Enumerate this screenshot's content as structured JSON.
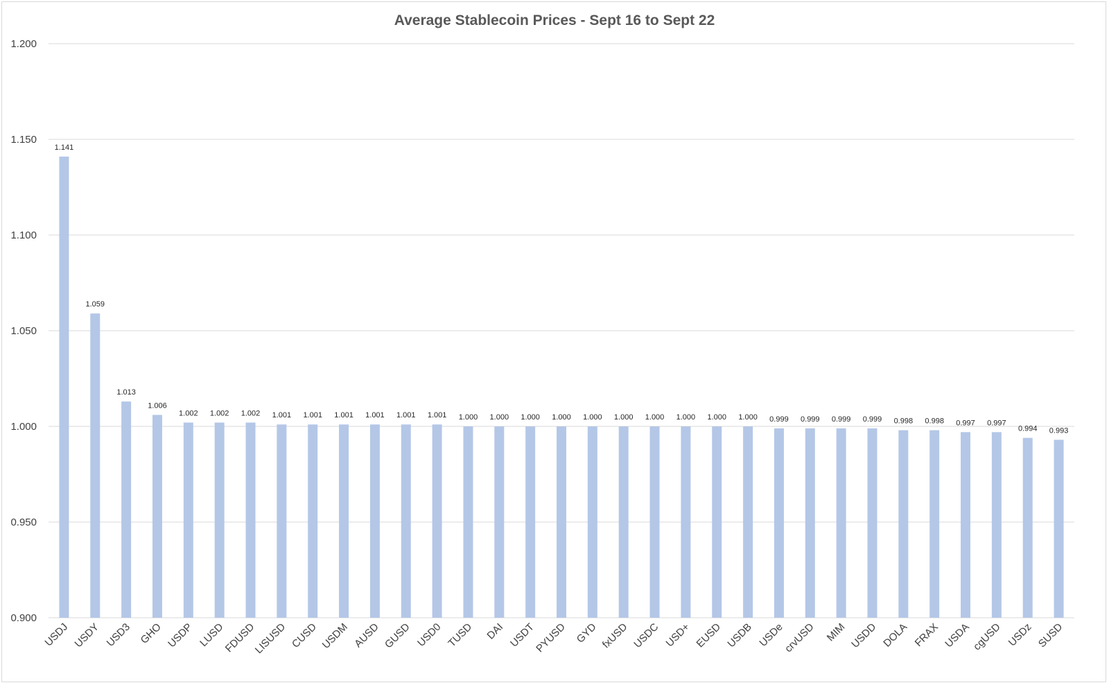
{
  "chart_data": {
    "type": "bar",
    "title": "Average Stablecoin Prices - Sept 16 to Sept 22",
    "xlabel": "",
    "ylabel": "",
    "ylim": [
      0.9,
      1.2
    ],
    "y_ticks": [
      "0.900",
      "0.950",
      "1.000",
      "1.050",
      "1.100",
      "1.150",
      "1.200"
    ],
    "y_tick_values": [
      0.9,
      0.95,
      1.0,
      1.05,
      1.1,
      1.15,
      1.2
    ],
    "grid": true,
    "legend": "none",
    "bar_color": "#b4c7e7",
    "categories": [
      "USDJ",
      "USDY",
      "USD3",
      "GHO",
      "USDP",
      "LUSD",
      "FDUSD",
      "LISUSD",
      "CUSD",
      "USDM",
      "AUSD",
      "GUSD",
      "USD0",
      "TUSD",
      "DAI",
      "USDT",
      "PYUSD",
      "GYD",
      "fxUSD",
      "USDC",
      "USD+",
      "EUSD",
      "USDB",
      "USDe",
      "crvUSD",
      "MIM",
      "USDD",
      "DOLA",
      "FRAX",
      "USDA",
      "cgUSD",
      "USDz",
      "SUSD"
    ],
    "values": [
      1.141,
      1.059,
      1.013,
      1.006,
      1.002,
      1.002,
      1.002,
      1.001,
      1.001,
      1.001,
      1.001,
      1.001,
      1.001,
      1.0,
      1.0,
      1.0,
      1.0,
      1.0,
      1.0,
      1.0,
      1.0,
      1.0,
      1.0,
      0.999,
      0.999,
      0.999,
      0.999,
      0.998,
      0.998,
      0.997,
      0.997,
      0.994,
      0.993
    ],
    "data_labels": [
      "1.141",
      "1.059",
      "1.013",
      "1.006",
      "1.002",
      "1.002",
      "1.002",
      "1.001",
      "1.001",
      "1.001",
      "1.001",
      "1.001",
      "1.001",
      "1.000",
      "1.000",
      "1.000",
      "1.000",
      "1.000",
      "1.000",
      "1.000",
      "1.000",
      "1.000",
      "1.000",
      "0.999",
      "0.999",
      "0.999",
      "0.999",
      "0.998",
      "0.998",
      "0.997",
      "0.997",
      "0.994",
      "0.993"
    ]
  }
}
